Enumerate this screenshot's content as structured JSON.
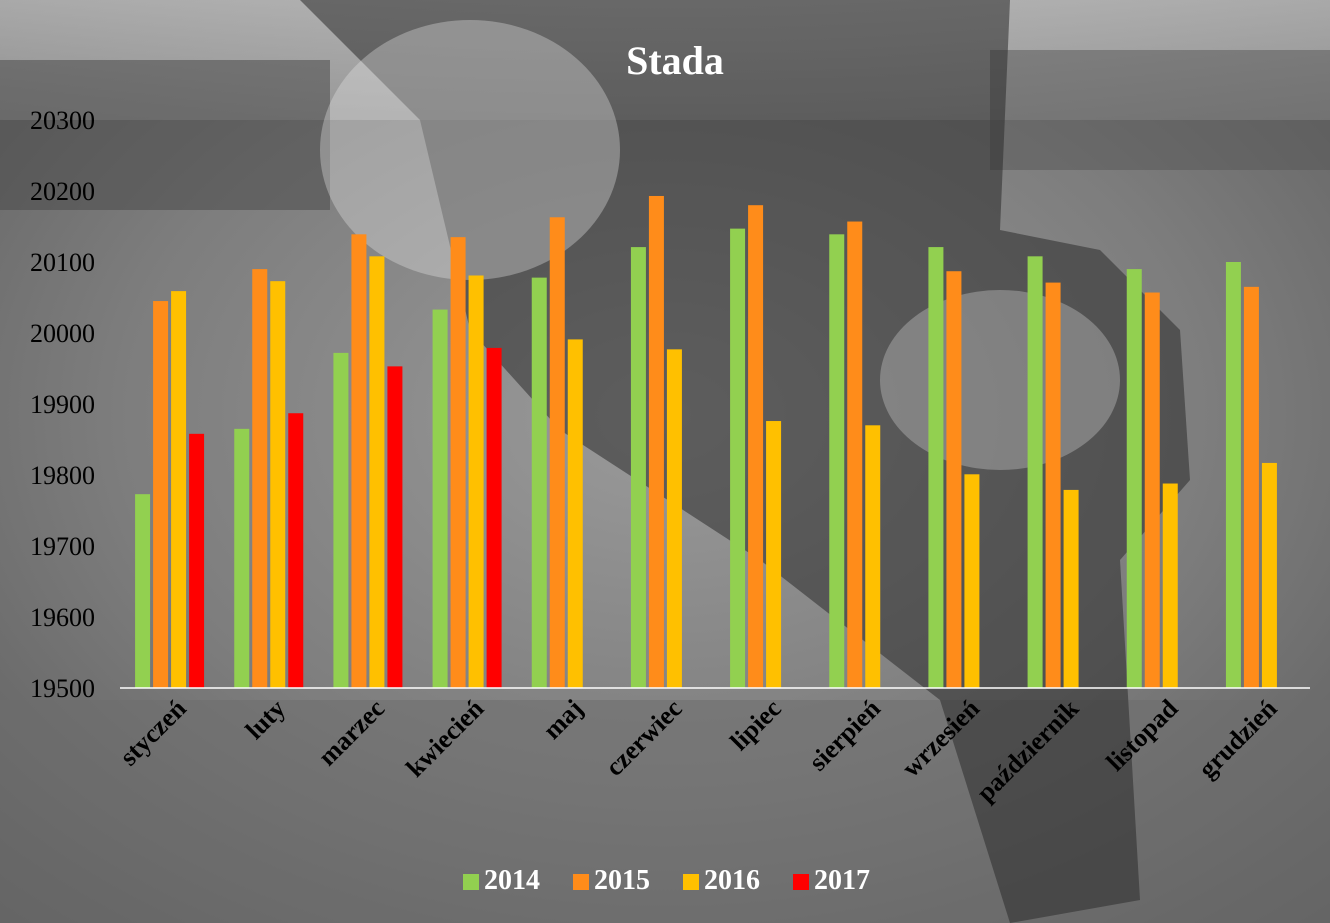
{
  "chart_data": {
    "type": "bar",
    "title": "Stada",
    "xlabel": "",
    "ylabel": "",
    "ylim": [
      19500,
      20300
    ],
    "yticks": [
      19500,
      19600,
      19700,
      19800,
      19900,
      20000,
      20100,
      20200,
      20300
    ],
    "grid": false,
    "legend_position": "bottom",
    "categories": [
      "styczeń",
      "luty",
      "marzec",
      "kwiecień",
      "maj",
      "czerwiec",
      "lipiec",
      "sierpień",
      "wrzesień",
      "październik",
      "listopad",
      "grudzień"
    ],
    "series": [
      {
        "name": "2014",
        "color": "#92d050",
        "values": [
          19773,
          19865,
          19972,
          20033,
          20078,
          20121,
          20147,
          20139,
          20121,
          20108,
          20090,
          20100
        ]
      },
      {
        "name": "2015",
        "color": "#ff8c1a",
        "values": [
          20045,
          20090,
          20139,
          20135,
          20163,
          20193,
          20180,
          20157,
          20087,
          20071,
          20057,
          20065
        ]
      },
      {
        "name": "2016",
        "color": "#ffc000",
        "values": [
          20059,
          20073,
          20108,
          20081,
          19991,
          19977,
          19876,
          19870,
          19801,
          19779,
          19788,
          19817
        ]
      },
      {
        "name": "2017",
        "color": "#ff0000",
        "values": [
          19858,
          19887,
          19953,
          19979,
          null,
          null,
          null,
          null,
          null,
          null,
          null,
          null
        ]
      }
    ]
  }
}
